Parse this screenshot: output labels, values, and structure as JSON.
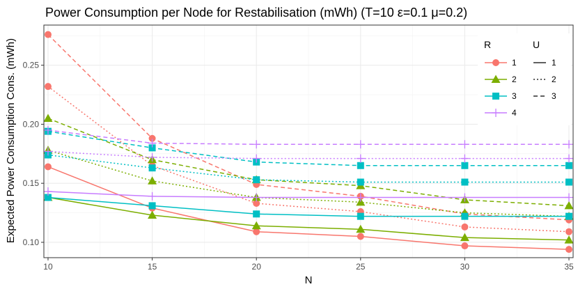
{
  "chart_data": {
    "type": "line",
    "title": "Power Consumption per Node for Restabilisation  (mWh) (T=10 ε=0.1  μ=0.2)",
    "xlabel": "N",
    "ylabel": "Expected Power Consumption Cons. (mWh)",
    "x": [
      10,
      15,
      20,
      25,
      30,
      35
    ],
    "x_ticks": [
      10,
      15,
      20,
      25,
      30,
      35
    ],
    "y_ticks": [
      0.1,
      0.15,
      0.2,
      0.25
    ],
    "y_tick_labels": [
      "0.10",
      "0.15",
      "0.20",
      "0.25"
    ],
    "xlim": [
      9.8,
      35.2
    ],
    "ylim": [
      0.087,
      0.284
    ],
    "grid": true,
    "legend_R": {
      "title": "R",
      "items": [
        {
          "label": "1",
          "color": "#F8766D",
          "shape": "circle"
        },
        {
          "label": "2",
          "color": "#7CAE00",
          "shape": "triangle"
        },
        {
          "label": "3",
          "color": "#00BFC4",
          "shape": "square"
        },
        {
          "label": "4",
          "color": "#C77CFF",
          "shape": "plus"
        }
      ]
    },
    "legend_U": {
      "title": "U",
      "items": [
        {
          "label": "1",
          "dash": "solid"
        },
        {
          "label": "2",
          "dash": "dotted"
        },
        {
          "label": "3",
          "dash": "dashed"
        }
      ]
    },
    "series": [
      {
        "name": "R=1, U=1",
        "R": "1",
        "U": "1",
        "values": [
          0.164,
          0.129,
          0.109,
          0.105,
          0.097,
          0.094
        ]
      },
      {
        "name": "R=1, U=2",
        "R": "1",
        "U": "2",
        "values": [
          0.232,
          0.165,
          0.133,
          0.126,
          0.113,
          0.109
        ]
      },
      {
        "name": "R=1, U=3",
        "R": "1",
        "U": "3",
        "values": [
          0.276,
          0.188,
          0.149,
          0.139,
          0.124,
          0.119
        ]
      },
      {
        "name": "R=2, U=1",
        "R": "2",
        "U": "1",
        "values": [
          0.138,
          0.123,
          0.114,
          0.111,
          0.104,
          0.102
        ]
      },
      {
        "name": "R=2, U=2",
        "R": "2",
        "U": "2",
        "values": [
          0.178,
          0.152,
          0.138,
          0.134,
          0.125,
          0.122
        ]
      },
      {
        "name": "R=2, U=3",
        "R": "2",
        "U": "3",
        "values": [
          0.205,
          0.17,
          0.153,
          0.148,
          0.136,
          0.131
        ]
      },
      {
        "name": "R=3, U=1",
        "R": "3",
        "U": "1",
        "values": [
          0.138,
          0.131,
          0.124,
          0.122,
          0.122,
          0.122
        ]
      },
      {
        "name": "R=3, U=2",
        "R": "3",
        "U": "2",
        "values": [
          0.174,
          0.163,
          0.153,
          0.151,
          0.151,
          0.151
        ]
      },
      {
        "name": "R=3, U=3",
        "R": "3",
        "U": "3",
        "values": [
          0.194,
          0.18,
          0.168,
          0.165,
          0.165,
          0.165
        ]
      },
      {
        "name": "R=4, U=1",
        "R": "4",
        "U": "1",
        "values": [
          0.143,
          0.139,
          0.138,
          0.138,
          0.138,
          0.138
        ]
      },
      {
        "name": "R=4, U=2",
        "R": "4",
        "U": "2",
        "values": [
          0.177,
          0.172,
          0.171,
          0.171,
          0.171,
          0.171
        ]
      },
      {
        "name": "R=4, U=3",
        "R": "4",
        "U": "3",
        "values": [
          0.195,
          0.184,
          0.183,
          0.183,
          0.183,
          0.183
        ]
      }
    ]
  }
}
